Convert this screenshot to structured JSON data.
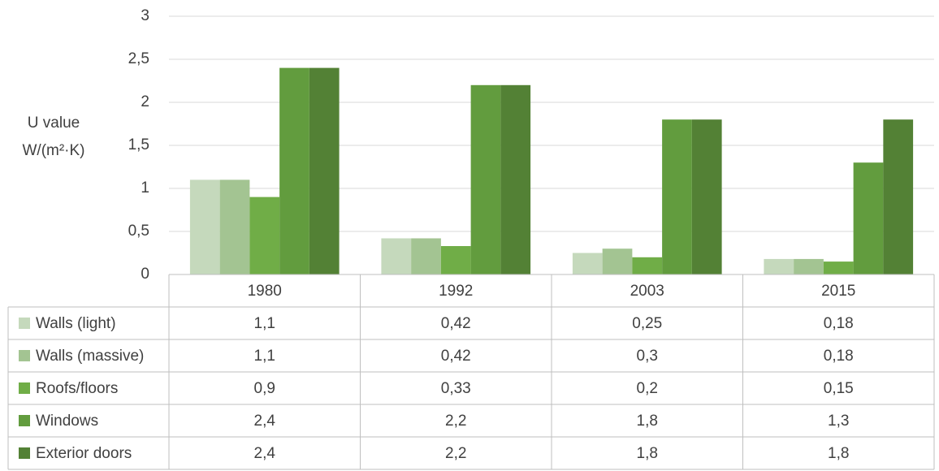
{
  "chart_data": {
    "type": "bar",
    "y_label": [
      "U value",
      "W/(m²·K)"
    ],
    "categories": [
      "1980",
      "1992",
      "2003",
      "2015"
    ],
    "series": [
      {
        "name": "Walls (light)",
        "color": "#c5d9bc",
        "values": [
          1.1,
          0.42,
          0.25,
          0.18
        ],
        "value_labels": [
          "1,1",
          "0,42",
          "0,25",
          "0,18"
        ]
      },
      {
        "name": "Walls (massive)",
        "color": "#a3c492",
        "values": [
          1.1,
          0.42,
          0.3,
          0.18
        ],
        "value_labels": [
          "1,1",
          "0,42",
          "0,3",
          "0,18"
        ]
      },
      {
        "name": "Roofs/floors",
        "color": "#70ad47",
        "values": [
          0.9,
          0.33,
          0.2,
          0.15
        ],
        "value_labels": [
          "0,9",
          "0,33",
          "0,2",
          "0,15"
        ]
      },
      {
        "name": "Windows",
        "color": "#629c3e",
        "values": [
          2.4,
          2.2,
          1.8,
          1.3
        ],
        "value_labels": [
          "2,4",
          "2,2",
          "1,8",
          "1,3"
        ]
      },
      {
        "name": "Exterior doors",
        "color": "#538135",
        "values": [
          2.4,
          2.2,
          1.8,
          1.8
        ],
        "value_labels": [
          "2,4",
          "2,2",
          "1,8",
          "1,8"
        ]
      }
    ],
    "ylim": [
      0,
      3
    ],
    "yticks": [
      0,
      {
        "value": 0.5,
        "label": "0,5"
      },
      1,
      {
        "value": 1.5,
        "label": "1,5"
      },
      2,
      {
        "value": 2.5,
        "label": "2,5"
      },
      3
    ],
    "grid": true
  }
}
